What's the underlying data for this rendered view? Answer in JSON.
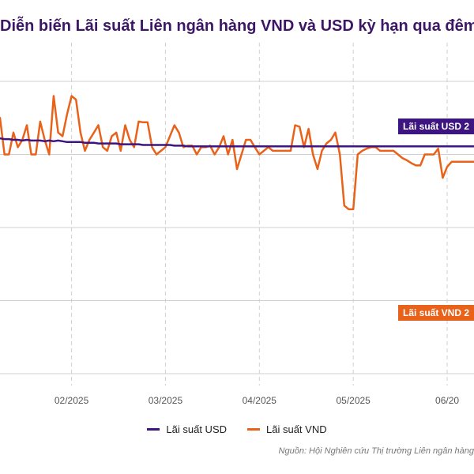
{
  "title": "Diễn biến Lãi suất Liên ngân hàng VND và USD kỳ hạn qua đêm",
  "source": "Nguồn: Hội Nghiên cứu Thị trường Liên ngân hàng",
  "legend": {
    "usd_label": "Lãi suất USD",
    "vnd_label": "Lãi suất VND"
  },
  "colors": {
    "usd": "#3d1580",
    "vnd": "#e8621a",
    "title": "#3d1766",
    "grid": "#d0d0d0"
  },
  "tags": {
    "usd": "Lãi suất USD 2",
    "vnd": "Lãi suất VND 2"
  },
  "chart_data": {
    "type": "line",
    "title": "Diễn biến Lãi suất Liên ngân hàng VND và USD kỳ hạn qua đêm",
    "x_tick_labels": [
      "02/2025",
      "03/2025",
      "04/2025",
      "05/2025",
      "06/20"
    ],
    "xlabel": "",
    "ylabel": "",
    "grid": true,
    "legend_position": "bottom",
    "note": "y values are relative levels (gridline units); the y-axis tick labels are not visible in the screenshot",
    "ylim": [
      0,
      4
    ],
    "x_range": [
      0,
      106
    ],
    "x_tick_positions": [
      16,
      37,
      58,
      79,
      100
    ],
    "series": [
      {
        "name": "Lãi suất USD",
        "x": [
          0,
          1,
          2,
          3,
          4,
          5,
          6,
          7,
          8,
          9,
          10,
          11,
          12,
          13,
          14,
          15,
          16,
          17,
          18,
          19,
          20,
          21,
          22,
          23,
          24,
          25,
          26,
          27,
          28,
          29,
          30,
          31,
          32,
          33,
          34,
          35,
          36,
          37,
          38,
          39,
          40,
          41,
          42,
          43,
          44,
          45,
          46,
          47,
          48,
          49,
          50,
          51,
          52,
          53,
          54,
          55,
          56,
          57,
          58,
          59,
          60,
          61,
          62,
          63,
          64,
          65,
          66,
          67,
          68,
          69,
          70,
          71,
          72,
          73,
          74,
          75,
          76,
          77,
          78,
          79,
          80,
          81,
          82,
          83,
          84,
          85,
          86,
          87,
          88,
          89,
          90,
          91,
          92,
          93,
          94,
          95,
          96,
          97,
          98,
          99,
          100,
          101,
          102,
          103,
          104,
          105,
          106
        ],
        "y": [
          3.22,
          3.21,
          3.21,
          3.2,
          3.2,
          3.19,
          3.2,
          3.19,
          3.19,
          3.19,
          3.18,
          3.19,
          3.18,
          3.19,
          3.18,
          3.17,
          3.17,
          3.17,
          3.17,
          3.16,
          3.16,
          3.16,
          3.15,
          3.15,
          3.15,
          3.15,
          3.15,
          3.14,
          3.14,
          3.14,
          3.14,
          3.14,
          3.13,
          3.13,
          3.13,
          3.13,
          3.13,
          3.13,
          3.13,
          3.12,
          3.12,
          3.12,
          3.11,
          3.11,
          3.11,
          3.11,
          3.11,
          3.11,
          3.11,
          3.11,
          3.11,
          3.11,
          3.11,
          3.11,
          3.11,
          3.11,
          3.11,
          3.11,
          3.11,
          3.11,
          3.11,
          3.11,
          3.11,
          3.11,
          3.11,
          3.11,
          3.11,
          3.11,
          3.11,
          3.11,
          3.11,
          3.11,
          3.11,
          3.11,
          3.11,
          3.11,
          3.11,
          3.11,
          3.11,
          3.11,
          3.11,
          3.11,
          3.11,
          3.11,
          3.11,
          3.11,
          3.11,
          3.11,
          3.11,
          3.11,
          3.11,
          3.11,
          3.11,
          3.11,
          3.11,
          3.11,
          3.11,
          3.11,
          3.11,
          3.11,
          3.11,
          3.11,
          3.11,
          3.11,
          3.11,
          3.11,
          3.11
        ]
      },
      {
        "name": "Lãi suất VND",
        "x": [
          0,
          1,
          2,
          3,
          4,
          5,
          6,
          7,
          8,
          9,
          10,
          11,
          12,
          13,
          14,
          15,
          16,
          17,
          18,
          19,
          20,
          21,
          22,
          23,
          24,
          25,
          26,
          27,
          28,
          29,
          30,
          31,
          32,
          33,
          34,
          35,
          36,
          37,
          38,
          39,
          40,
          41,
          42,
          43,
          44,
          45,
          46,
          47,
          48,
          49,
          50,
          51,
          52,
          53,
          54,
          55,
          56,
          57,
          58,
          59,
          60,
          61,
          62,
          63,
          64,
          65,
          66,
          67,
          68,
          69,
          70,
          71,
          72,
          73,
          74,
          75,
          76,
          77,
          78,
          79,
          80,
          81,
          82,
          83,
          84,
          85,
          86,
          87,
          88,
          89,
          90,
          91,
          92,
          93,
          94,
          95,
          96,
          97,
          98,
          99,
          100,
          101,
          102,
          103,
          104,
          105,
          106
        ],
        "y": [
          3.5,
          3.0,
          3.0,
          3.3,
          3.1,
          3.2,
          3.4,
          3.0,
          3.0,
          3.45,
          3.2,
          3.0,
          3.8,
          3.3,
          3.25,
          3.55,
          3.8,
          3.75,
          3.3,
          3.05,
          3.2,
          3.3,
          3.4,
          3.1,
          3.05,
          3.25,
          3.3,
          3.05,
          3.4,
          3.2,
          3.1,
          3.45,
          3.44,
          3.44,
          3.1,
          3.0,
          3.05,
          3.1,
          3.25,
          3.4,
          3.3,
          3.1,
          3.12,
          3.12,
          3.0,
          3.1,
          3.1,
          3.12,
          3.0,
          3.1,
          3.25,
          3.0,
          3.2,
          2.8,
          3.0,
          3.2,
          3.2,
          3.1,
          3.0,
          3.05,
          3.1,
          3.05,
          3.05,
          3.05,
          3.05,
          3.05,
          3.4,
          3.38,
          3.1,
          3.35,
          3.0,
          2.8,
          3.05,
          3.15,
          3.2,
          3.3,
          3.0,
          2.3,
          2.25,
          2.25,
          3.0,
          3.05,
          3.08,
          3.1,
          3.1,
          3.05,
          3.05,
          3.05,
          3.05,
          3.0,
          2.95,
          2.92,
          2.88,
          2.85,
          2.85,
          3.0,
          3.0,
          3.0,
          3.08,
          2.68,
          2.83,
          2.9,
          2.9,
          2.9,
          2.9,
          2.9,
          2.9
        ]
      }
    ]
  }
}
